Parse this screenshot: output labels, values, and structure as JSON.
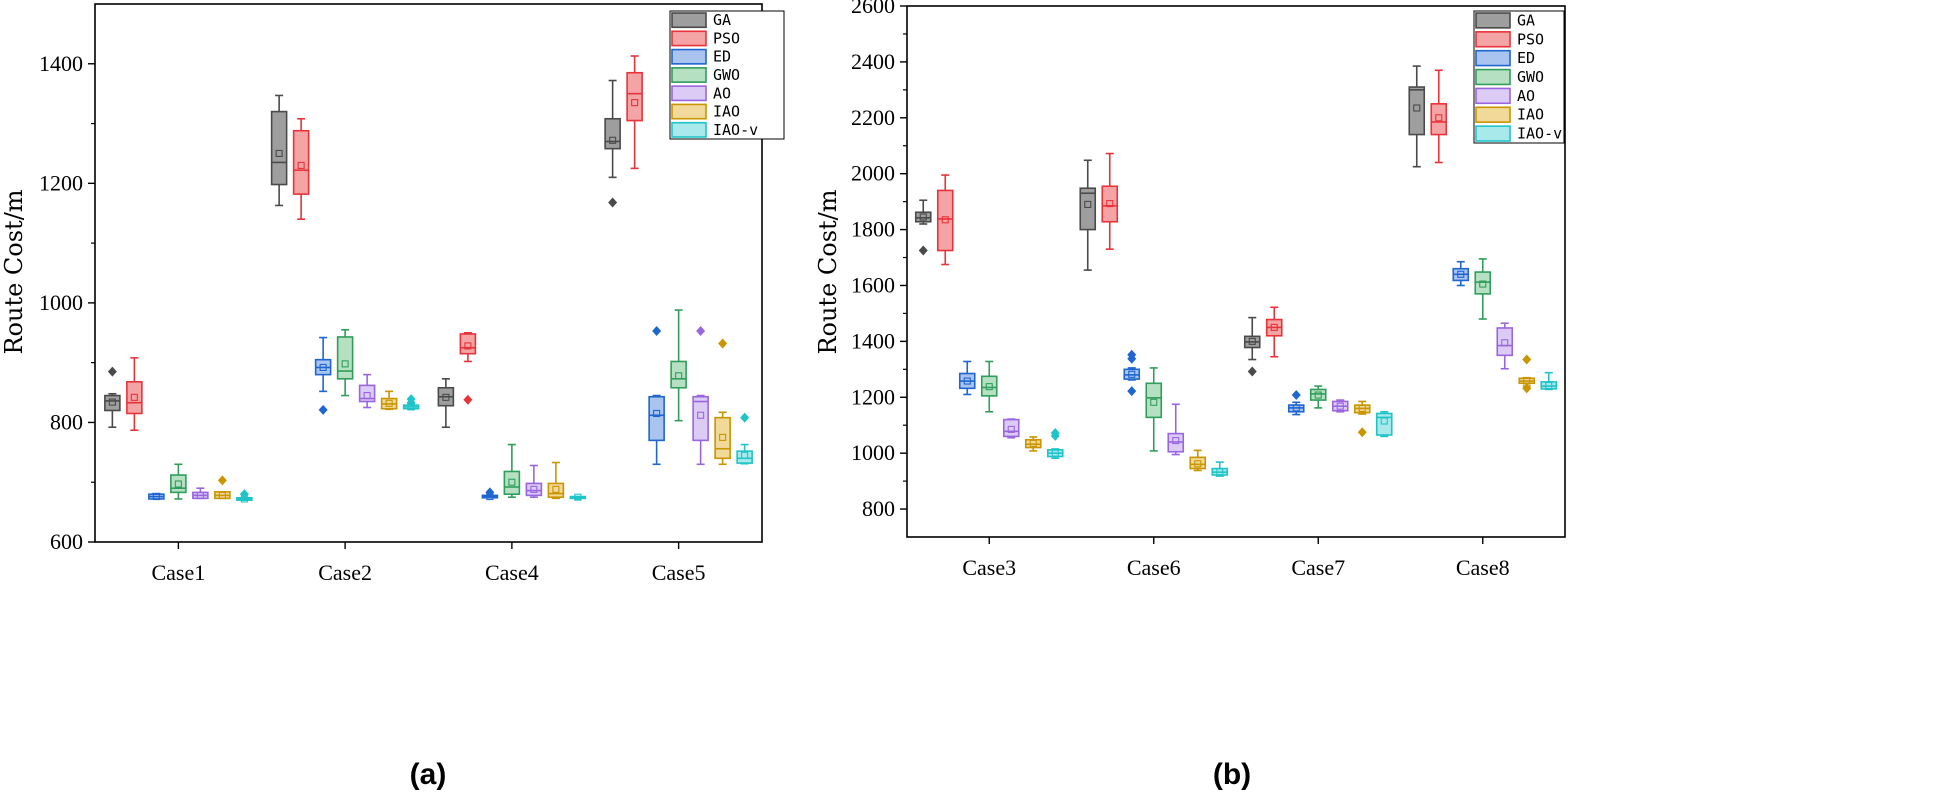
{
  "chart_data": [
    {
      "type": "boxplot",
      "panel_label": "(a)",
      "ylabel": "Route Cost/m",
      "ylim": [
        600,
        1500
      ],
      "yticks": [
        600,
        800,
        1000,
        1200,
        1400
      ],
      "categories": [
        "Case1",
        "Case2",
        "Case4",
        "Case5"
      ],
      "legend": [
        "GA",
        "PSO",
        "ED",
        "GWO",
        "AO",
        "IAO",
        "IAO-v"
      ],
      "series": [
        {
          "name": "GA",
          "color": "#4a4a4a",
          "fill": "#9e9e9e",
          "boxes": [
            {
              "whislo": 792,
              "q1": 820,
              "med": 836,
              "q3": 845,
              "whishi": 848,
              "mean": 834,
              "fliers": [
                885
              ]
            },
            {
              "whislo": 1163,
              "q1": 1198,
              "med": 1235,
              "q3": 1320,
              "whishi": 1347,
              "mean": 1250,
              "fliers": []
            },
            {
              "whislo": 792,
              "q1": 828,
              "med": 843,
              "q3": 858,
              "whishi": 873,
              "mean": 842,
              "fliers": []
            },
            {
              "whislo": 1210,
              "q1": 1258,
              "med": 1270,
              "q3": 1308,
              "whishi": 1372,
              "mean": 1272,
              "fliers": [
                1168
              ]
            }
          ]
        },
        {
          "name": "PSO",
          "color": "#e8333a",
          "fill": "#f4a4a4",
          "boxes": [
            {
              "whislo": 787,
              "q1": 815,
              "med": 833,
              "q3": 868,
              "whishi": 908,
              "mean": 842,
              "fliers": []
            },
            {
              "whislo": 1140,
              "q1": 1182,
              "med": 1222,
              "q3": 1288,
              "whishi": 1308,
              "mean": 1230,
              "fliers": []
            },
            {
              "whislo": 902,
              "q1": 915,
              "med": 925,
              "q3": 948,
              "whishi": 950,
              "mean": 928,
              "fliers": [
                838
              ]
            },
            {
              "whislo": 1225,
              "q1": 1305,
              "med": 1350,
              "q3": 1385,
              "whishi": 1413,
              "mean": 1335,
              "fliers": []
            }
          ]
        },
        {
          "name": "ED",
          "color": "#1f66d1",
          "fill": "#a9c4ef",
          "boxes": [
            {
              "whislo": 672,
              "q1": 672,
              "med": 676,
              "q3": 680,
              "whishi": 681,
              "mean": 676,
              "fliers": []
            },
            {
              "whislo": 852,
              "q1": 880,
              "med": 892,
              "q3": 905,
              "whishi": 942,
              "mean": 892,
              "fliers": [
                821
              ]
            },
            {
              "whislo": 674,
              "q1": 674,
              "med": 676,
              "q3": 678,
              "whishi": 678,
              "mean": 676,
              "fliers": [
                683
              ]
            },
            {
              "whislo": 730,
              "q1": 770,
              "med": 812,
              "q3": 843,
              "whishi": 845,
              "mean": 815,
              "fliers": [
                953
              ]
            }
          ]
        },
        {
          "name": "GWO",
          "color": "#2f9e5a",
          "fill": "#b6e0c2",
          "boxes": [
            {
              "whislo": 672,
              "q1": 683,
              "med": 690,
              "q3": 712,
              "whishi": 730,
              "mean": 697,
              "fliers": []
            },
            {
              "whislo": 845,
              "q1": 873,
              "med": 886,
              "q3": 943,
              "whishi": 955,
              "mean": 898,
              "fliers": []
            },
            {
              "whislo": 675,
              "q1": 680,
              "med": 692,
              "q3": 718,
              "whishi": 763,
              "mean": 700,
              "fliers": []
            },
            {
              "whislo": 803,
              "q1": 858,
              "med": 873,
              "q3": 902,
              "whishi": 988,
              "mean": 878,
              "fliers": []
            }
          ]
        },
        {
          "name": "AO",
          "color": "#9966e0",
          "fill": "#dccbf5",
          "boxes": [
            {
              "whislo": 673,
              "q1": 673,
              "med": 678,
              "q3": 683,
              "whishi": 690,
              "mean": 678,
              "fliers": []
            },
            {
              "whislo": 825,
              "q1": 835,
              "med": 840,
              "q3": 862,
              "whishi": 880,
              "mean": 845,
              "fliers": []
            },
            {
              "whislo": 675,
              "q1": 678,
              "med": 686,
              "q3": 698,
              "whishi": 728,
              "mean": 688,
              "fliers": []
            },
            {
              "whislo": 730,
              "q1": 770,
              "med": 835,
              "q3": 843,
              "whishi": 845,
              "mean": 812,
              "fliers": [
                953
              ]
            }
          ]
        },
        {
          "name": "IAO",
          "color": "#c99500",
          "fill": "#f1d99a",
          "boxes": [
            {
              "whislo": 673,
              "q1": 673,
              "med": 678,
              "q3": 684,
              "whishi": 684,
              "mean": 678,
              "fliers": [
                703
              ]
            },
            {
              "whislo": 822,
              "q1": 823,
              "med": 831,
              "q3": 840,
              "whishi": 852,
              "mean": 832,
              "fliers": []
            },
            {
              "whislo": 673,
              "q1": 675,
              "med": 681,
              "q3": 698,
              "whishi": 733,
              "mean": 688,
              "fliers": []
            },
            {
              "whislo": 730,
              "q1": 740,
              "med": 756,
              "q3": 808,
              "whishi": 817,
              "mean": 775,
              "fliers": [
                932
              ]
            }
          ]
        },
        {
          "name": "IAO-v",
          "color": "#1fc4c8",
          "fill": "#a8eaec",
          "boxes": [
            {
              "whislo": 670,
              "q1": 670,
              "med": 672,
              "q3": 674,
              "whishi": 674,
              "mean": 672,
              "fliers": [
                680
              ]
            },
            {
              "whislo": 822,
              "q1": 823,
              "med": 826,
              "q3": 829,
              "whishi": 831,
              "mean": 826,
              "fliers": [
                839,
                833
              ]
            },
            {
              "whislo": 672,
              "q1": 673,
              "med": 675,
              "q3": 676,
              "whishi": 676,
              "mean": 675,
              "fliers": []
            },
            {
              "whislo": 731,
              "q1": 732,
              "med": 740,
              "q3": 752,
              "whishi": 763,
              "mean": 745,
              "fliers": [
                808
              ]
            }
          ]
        }
      ]
    },
    {
      "type": "boxplot",
      "panel_label": "(b)",
      "ylabel": "Route Cost/m",
      "ylim": [
        700,
        2600
      ],
      "yticks": [
        800,
        1000,
        1200,
        1400,
        1600,
        1800,
        2000,
        2200,
        2400,
        2600
      ],
      "categories": [
        "Case3",
        "Case6",
        "Case7",
        "Case8"
      ],
      "legend": [
        "GA",
        "PSO",
        "ED",
        "GWO",
        "AO",
        "IAO",
        "IAO-v"
      ],
      "series": [
        {
          "name": "GA",
          "color": "#4a4a4a",
          "fill": "#9e9e9e",
          "boxes": [
            {
              "whislo": 1820,
              "q1": 1828,
              "med": 1842,
              "q3": 1862,
              "whishi": 1905,
              "mean": 1845,
              "fliers": [
                1725
              ]
            },
            {
              "whislo": 1655,
              "q1": 1800,
              "med": 1930,
              "q3": 1948,
              "whishi": 2048,
              "mean": 1890,
              "fliers": []
            },
            {
              "whislo": 1335,
              "q1": 1378,
              "med": 1398,
              "q3": 1418,
              "whishi": 1485,
              "mean": 1400,
              "fliers": [
                1292
              ]
            },
            {
              "whislo": 2025,
              "q1": 2140,
              "med": 2300,
              "q3": 2310,
              "whishi": 2385,
              "mean": 2235,
              "fliers": []
            }
          ]
        },
        {
          "name": "PSO",
          "color": "#e8333a",
          "fill": "#f4a4a4",
          "boxes": [
            {
              "whislo": 1675,
              "q1": 1725,
              "med": 1838,
              "q3": 1940,
              "whishi": 1995,
              "mean": 1835,
              "fliers": []
            },
            {
              "whislo": 1730,
              "q1": 1828,
              "med": 1885,
              "q3": 1955,
              "whishi": 2072,
              "mean": 1893,
              "fliers": []
            },
            {
              "whislo": 1345,
              "q1": 1420,
              "med": 1450,
              "q3": 1478,
              "whishi": 1522,
              "mean": 1450,
              "fliers": []
            },
            {
              "whislo": 2040,
              "q1": 2140,
              "med": 2185,
              "q3": 2250,
              "whishi": 2370,
              "mean": 2200,
              "fliers": []
            }
          ]
        },
        {
          "name": "ED",
          "color": "#1f66d1",
          "fill": "#a9c4ef",
          "boxes": [
            {
              "whislo": 1210,
              "q1": 1232,
              "med": 1258,
              "q3": 1285,
              "whishi": 1328,
              "mean": 1258,
              "fliers": []
            },
            {
              "whislo": 1262,
              "q1": 1265,
              "med": 1280,
              "q3": 1300,
              "whishi": 1305,
              "mean": 1282,
              "fliers": [
                1352,
                1338,
                1222
              ]
            },
            {
              "whislo": 1138,
              "q1": 1148,
              "med": 1162,
              "q3": 1172,
              "whishi": 1182,
              "mean": 1162,
              "fliers": [
                1208
              ]
            },
            {
              "whislo": 1600,
              "q1": 1618,
              "med": 1640,
              "q3": 1660,
              "whishi": 1685,
              "mean": 1640,
              "fliers": []
            }
          ]
        },
        {
          "name": "GWO",
          "color": "#2f9e5a",
          "fill": "#b6e0c2",
          "boxes": [
            {
              "whislo": 1148,
              "q1": 1205,
              "med": 1235,
              "q3": 1275,
              "whishi": 1328,
              "mean": 1238,
              "fliers": []
            },
            {
              "whislo": 1008,
              "q1": 1128,
              "med": 1198,
              "q3": 1250,
              "whishi": 1305,
              "mean": 1182,
              "fliers": []
            },
            {
              "whislo": 1162,
              "q1": 1190,
              "med": 1212,
              "q3": 1228,
              "whishi": 1240,
              "mean": 1208,
              "fliers": []
            },
            {
              "whislo": 1480,
              "q1": 1570,
              "med": 1612,
              "q3": 1648,
              "whishi": 1695,
              "mean": 1605,
              "fliers": []
            }
          ]
        },
        {
          "name": "AO",
          "color": "#9966e0",
          "fill": "#dccbf5",
          "boxes": [
            {
              "whislo": 1055,
              "q1": 1060,
              "med": 1078,
              "q3": 1120,
              "whishi": 1122,
              "mean": 1085,
              "fliers": []
            },
            {
              "whislo": 995,
              "q1": 1005,
              "med": 1040,
              "q3": 1070,
              "whishi": 1175,
              "mean": 1045,
              "fliers": []
            },
            {
              "whislo": 1148,
              "q1": 1152,
              "med": 1168,
              "q3": 1185,
              "whishi": 1190,
              "mean": 1168,
              "fliers": []
            },
            {
              "whislo": 1302,
              "q1": 1350,
              "med": 1385,
              "q3": 1448,
              "whishi": 1465,
              "mean": 1395,
              "fliers": []
            }
          ]
        },
        {
          "name": "IAO",
          "color": "#c99500",
          "fill": "#f1d99a",
          "boxes": [
            {
              "whislo": 1008,
              "q1": 1020,
              "med": 1032,
              "q3": 1048,
              "whishi": 1058,
              "mean": 1035,
              "fliers": []
            },
            {
              "whislo": 938,
              "q1": 945,
              "med": 960,
              "q3": 985,
              "whishi": 1010,
              "mean": 962,
              "fliers": []
            },
            {
              "whislo": 1140,
              "q1": 1145,
              "med": 1160,
              "q3": 1172,
              "whishi": 1185,
              "mean": 1160,
              "fliers": [
                1075
              ]
            },
            {
              "whislo": 1240,
              "q1": 1250,
              "med": 1258,
              "q3": 1268,
              "whishi": 1270,
              "mean": 1258,
              "fliers": [
                1335,
                1232
              ]
            }
          ]
        },
        {
          "name": "IAO-v",
          "color": "#1fc4c8",
          "fill": "#a8eaec",
          "boxes": [
            {
              "whislo": 982,
              "q1": 988,
              "med": 1000,
              "q3": 1012,
              "whishi": 1015,
              "mean": 1000,
              "fliers": [
                1072,
                1062
              ]
            },
            {
              "whislo": 918,
              "q1": 922,
              "med": 932,
              "q3": 945,
              "whishi": 968,
              "mean": 933,
              "fliers": []
            },
            {
              "whislo": 1060,
              "q1": 1065,
              "med": 1128,
              "q3": 1142,
              "whishi": 1148,
              "mean": 1115,
              "fliers": []
            },
            {
              "whislo": 1228,
              "q1": 1230,
              "med": 1240,
              "q3": 1255,
              "whishi": 1288,
              "mean": 1242,
              "fliers": []
            }
          ]
        }
      ]
    }
  ]
}
